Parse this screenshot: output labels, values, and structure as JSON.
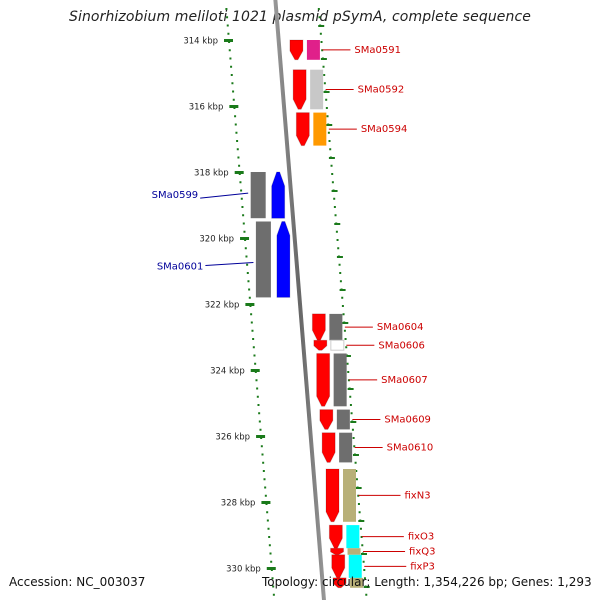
{
  "title": "Sinorhizobium meliloti 1021 plasmid pSymA, complete sequence",
  "footer": {
    "accession": "Accession: NC_003037",
    "topology": "Topology: circular; Length: 1,354,226 bp; Genes: 1,293"
  },
  "colors": {
    "forward_gene": "#ff0000",
    "reverse_gene": "#0000ff",
    "forward_label": "#cc0000",
    "reverse_label": "#000099",
    "tick": "#1a7a1a",
    "backbone": "#888888"
  },
  "kbp_labels": [
    "314 kbp",
    "316 kbp",
    "318 kbp",
    "320 kbp",
    "322 kbp",
    "324 kbp",
    "326 kbp",
    "328 kbp",
    "330 kbp"
  ],
  "reverse_genes": [
    {
      "label": "SMa0599",
      "start_kbp": 318.0,
      "end_kbp": 319.4,
      "cog_color": "#6e6e6e",
      "labeled": true
    },
    {
      "label": "SMa0601",
      "start_kbp": 319.5,
      "end_kbp": 321.8,
      "cog_color": "#6e6e6e",
      "labeled": true
    }
  ],
  "forward_genes": [
    {
      "label": "SMa0591",
      "start_kbp": 314.0,
      "end_kbp": 314.6,
      "cog_color": "#e0208a",
      "labeled": true
    },
    {
      "label": "SMa0592",
      "start_kbp": 314.9,
      "end_kbp": 316.1,
      "cog_color": "#c8c8c8",
      "labeled": true
    },
    {
      "label": "SMa0594",
      "start_kbp": 316.2,
      "end_kbp": 317.2,
      "cog_color": "#ff9900",
      "labeled": true
    },
    {
      "label": "SMa0604",
      "start_kbp": 322.3,
      "end_kbp": 323.1,
      "cog_color": "#6e6e6e",
      "labeled": true
    },
    {
      "label": "SMa0606",
      "start_kbp": 323.1,
      "end_kbp": 323.4,
      "cog_color": "#ffffff",
      "labeled": true
    },
    {
      "label": "SMa0607",
      "start_kbp": 323.5,
      "end_kbp": 325.1,
      "cog_color": "#6e6e6e",
      "labeled": true
    },
    {
      "label": "SMa0609",
      "start_kbp": 325.2,
      "end_kbp": 325.8,
      "cog_color": "#6e6e6e",
      "labeled": true
    },
    {
      "label": "SMa0610",
      "start_kbp": 325.9,
      "end_kbp": 326.8,
      "cog_color": "#6e6e6e",
      "labeled": true
    },
    {
      "label": "fixN3",
      "start_kbp": 327.0,
      "end_kbp": 328.6,
      "cog_color": "#b8b078",
      "labeled": true
    },
    {
      "label": "fixO3",
      "start_kbp": 328.7,
      "end_kbp": 329.4,
      "cog_color": "#00ffff",
      "labeled": true
    },
    {
      "label": "fixQ3",
      "start_kbp": 329.4,
      "end_kbp": 329.6,
      "cog_color": "#b8b078",
      "labeled": true
    },
    {
      "label": "fixP3",
      "start_kbp": 329.6,
      "end_kbp": 330.3,
      "cog_color": "#00ffff",
      "labeled": true
    },
    {
      "label": "",
      "start_kbp": 330.3,
      "end_kbp": 330.6,
      "cog_color": "#b8b078",
      "labeled": false
    }
  ]
}
